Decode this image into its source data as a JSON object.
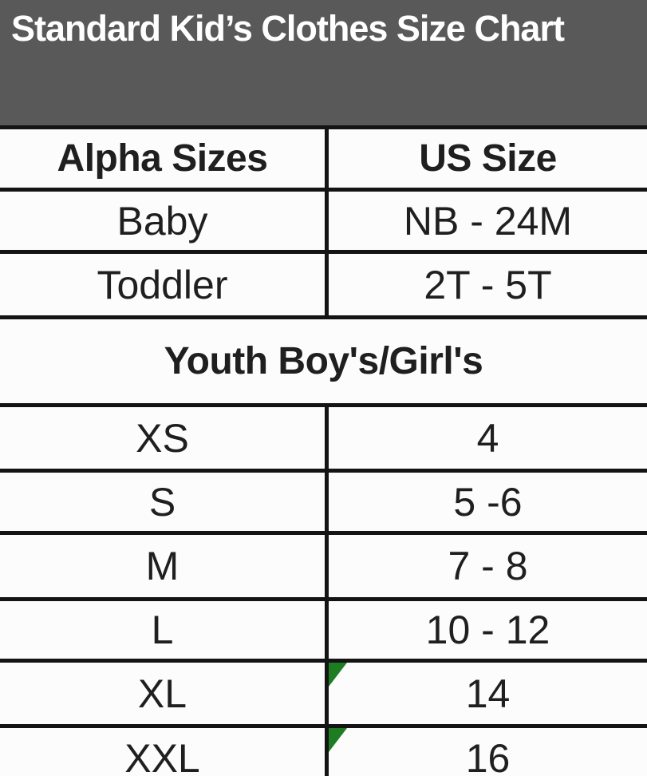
{
  "title": "Standard Kid’s Clothes Size Chart",
  "colors": {
    "header_bg": "#595959",
    "title_text": "#ffffff",
    "grid": "#141414",
    "text": "#1f1f1f",
    "cell_bg": "#fcfcfc",
    "flag_green": "#1e7d22"
  },
  "icons": {
    "error_indicator": "green-corner-triangle"
  },
  "chart_data": {
    "type": "table",
    "title": "Standard Kid’s Clothes Size Chart",
    "columns": [
      "Alpha Sizes",
      "US Size"
    ],
    "sections": [
      {
        "header": "",
        "rows": [
          [
            "Baby",
            "NB - 24M"
          ],
          [
            "Toddler",
            "2T - 5T"
          ]
        ]
      },
      {
        "header": "Youth Boy's/Girl's",
        "rows": [
          [
            "XS",
            "4"
          ],
          [
            "S",
            "5 -6"
          ],
          [
            "M",
            "7 - 8"
          ],
          [
            "L",
            "10 - 12"
          ],
          [
            "XL",
            "14"
          ],
          [
            "XXL",
            "16"
          ]
        ]
      }
    ],
    "flagged_cells": [
      "XL:US Size",
      "XXL:US Size"
    ],
    "layout_hints": {
      "section_header_spans_both_columns": true,
      "last_row_clipped_at_bottom": true
    }
  }
}
